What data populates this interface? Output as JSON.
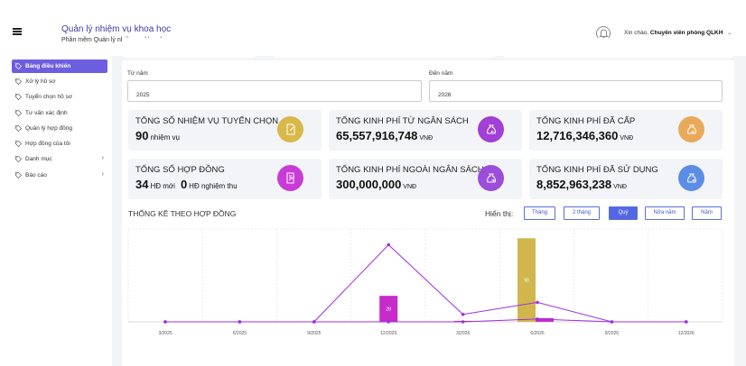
{
  "header": {
    "title": "Quản lý nhiệm vụ khoa học",
    "subtitle": "Phần mềm Quản lý nhiệm vụ khoa học",
    "greeting_prefix": "Xin chào,",
    "user_name": "Chuyên viên phòng QLKH"
  },
  "sidebar": {
    "items": [
      {
        "label": "Bảng điều khiển",
        "active": true
      },
      {
        "label": "Xử lý hồ sơ"
      },
      {
        "label": "Tuyển chọn hồ sơ"
      },
      {
        "label": "Tư vấn xác định"
      },
      {
        "label": "Quản lý hợp đồng"
      },
      {
        "label": "Hợp đồng của tôi"
      },
      {
        "label": "Danh mục",
        "has_children": true
      },
      {
        "label": "Báo cáo",
        "has_children": true
      }
    ]
  },
  "filters": {
    "from_label": "Từ năm",
    "from_value": "2025",
    "to_label": "Đến năm",
    "to_value": "2026"
  },
  "stats": [
    {
      "label": "Tổng số nhiệm vụ tuyển chọn",
      "value": "90",
      "unit": "nhiệm vụ",
      "color": "#d9b84a",
      "icon": "document-edit-icon"
    },
    {
      "label": "Tổng kinh phí từ ngân sách",
      "value": "65,557,916,748",
      "unit": "VNĐ",
      "color": "#a23fd4",
      "icon": "money-bag-in-icon"
    },
    {
      "label": "Tổng kinh phí đã cấp",
      "value": "12,716,346,360",
      "unit": "VNĐ",
      "color": "#e9a95a",
      "icon": "money-bag-in-icon"
    },
    {
      "label": "Tổng số hợp đồng",
      "value1": "34",
      "unit1": "HĐ mới",
      "value2": "0",
      "unit2": "HĐ nghiệm thu",
      "color": "#c93bd6",
      "icon": "contract-icon"
    },
    {
      "label": "Tổng kinh phí ngoài ngân sách",
      "value": "300,000,000",
      "unit": "VNĐ",
      "color": "#9b4ed9",
      "icon": "money-bag-out-icon"
    },
    {
      "label": "Tổng kinh phí đã sử dụng",
      "value": "8,852,963,238",
      "unit": "VNĐ",
      "color": "#5d8ee6",
      "icon": "money-bag-out-icon"
    }
  ],
  "chart_section": {
    "title": "Thống kê theo hợp đồng",
    "filter_label": "Hiển thị:",
    "buttons": [
      {
        "label": "Tháng"
      },
      {
        "label": "2 tháng"
      },
      {
        "label": "Quý",
        "active": true
      },
      {
        "label": "Nửa năm"
      },
      {
        "label": "Năm"
      }
    ]
  },
  "chart_data": {
    "type": "bar",
    "categories": [
      "3/2025",
      "6/2025",
      "9/2025",
      "12/2025",
      "3/2026",
      "6/2026",
      "9/2026",
      "12/2026"
    ],
    "ylim": [
      0,
      100
    ],
    "grid": true,
    "series": [
      {
        "type": "bar",
        "color": "#c72bc9",
        "values": [
          0,
          0,
          0,
          28,
          1,
          4,
          0,
          0
        ],
        "labels": [
          "",
          "",
          "",
          "28",
          "",
          "",
          "",
          ""
        ]
      },
      {
        "type": "bar",
        "color": "#d0b64c",
        "values": [
          0,
          0,
          0,
          0,
          0,
          90,
          0,
          0
        ],
        "labels": [
          "",
          "",
          "",
          "",
          "",
          "90",
          "",
          ""
        ]
      },
      {
        "type": "line",
        "color": "#9b30e0",
        "values": [
          0,
          0,
          0,
          83,
          8,
          21,
          0,
          0
        ]
      },
      {
        "type": "line",
        "color": "#9b30e0",
        "values": [
          0,
          0,
          0,
          0,
          0,
          3,
          0,
          0
        ]
      }
    ]
  }
}
